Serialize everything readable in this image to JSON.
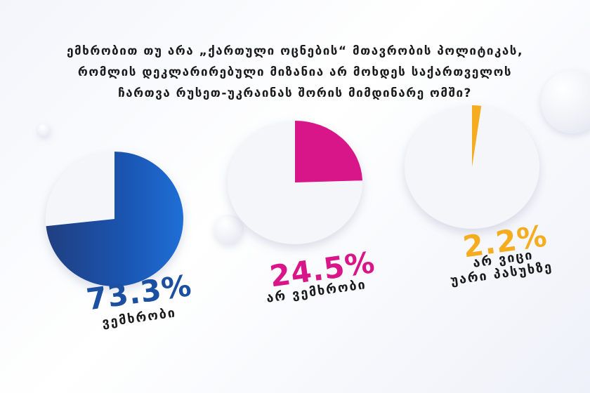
{
  "title_lines": [
    "ემხრობით თუ არა „ქართული ოცნების“ მთავრობის პოლიტიკას,",
    "რომლის დეკლარირებული მიზანია არ მოხდეს საქართველოს",
    "ჩართვა რუსეთ-უკრაინას შორის მიმდინარე ომში?"
  ],
  "colors": {
    "support": "#1565c9",
    "support_dark": "#203f80",
    "oppose": "#d8168a",
    "unknown": "#f5ac1f",
    "pie_base": "#f5f6fa"
  },
  "chart_data": {
    "type": "pie",
    "title": "ემხრობით თუ არა „ქართული ოცნების“ მთავრობის პოლიტიკას, რომლის დეკლარირებული მიზანია არ მოხდეს საქართველოს ჩართვა რუსეთ-უკრაინას შორის მიმდინარე ომში?",
    "slices": [
      {
        "label": "ვემხრობი",
        "value": 73.3,
        "value_text": "73.3%"
      },
      {
        "label": "არ ვემხრობი",
        "value": 24.5,
        "value_text": "24.5%"
      },
      {
        "label": "არ ვიცი / უარი პასუხზე",
        "label_lines": [
          "არ ვიცი",
          "უარი პასუხზე"
        ],
        "value": 2.2,
        "value_text": "2.2%"
      }
    ],
    "unit": "%"
  }
}
